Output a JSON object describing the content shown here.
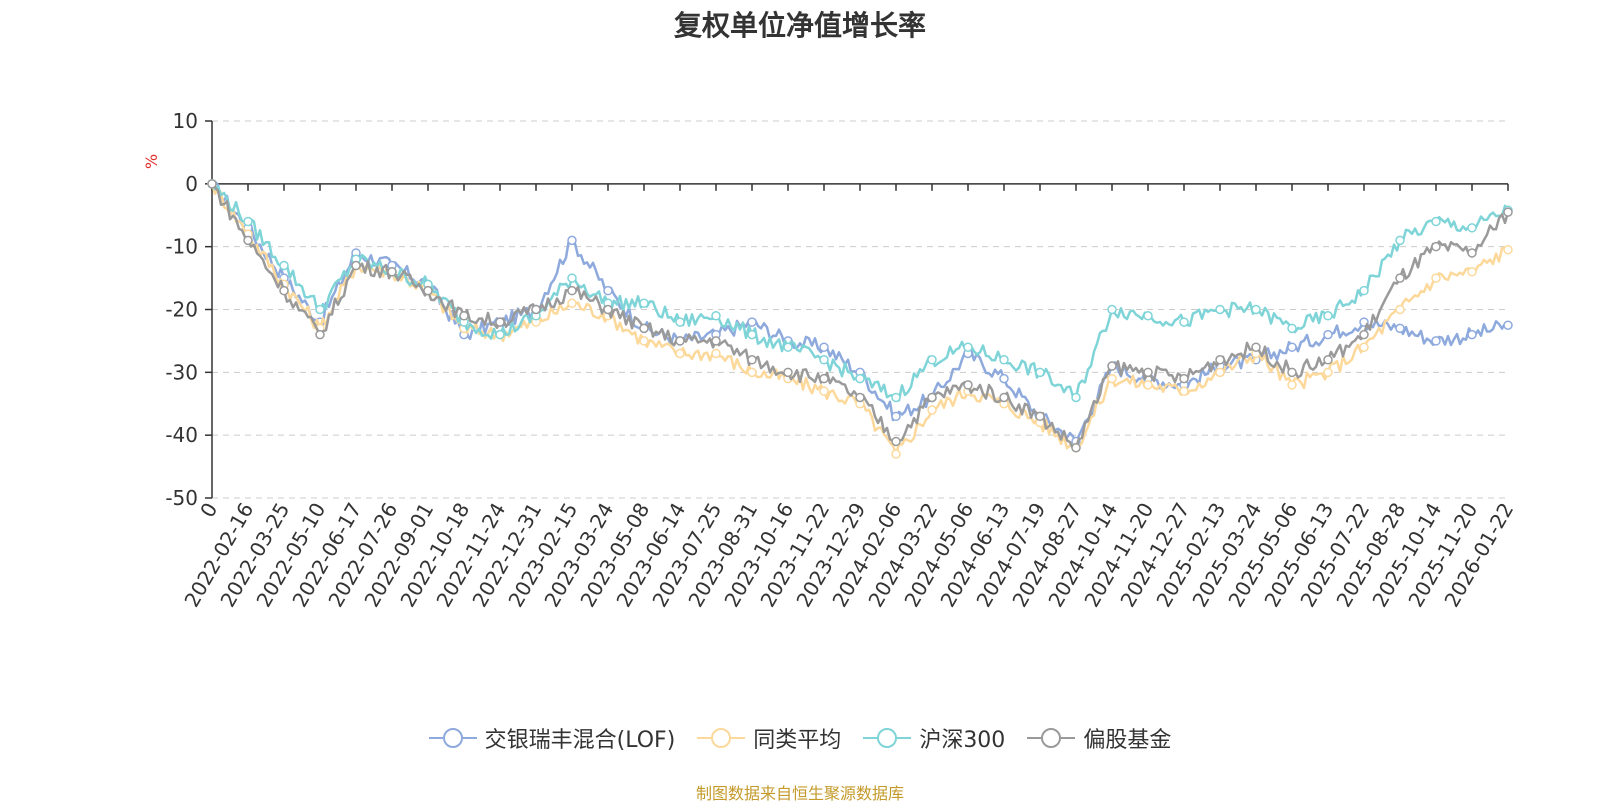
{
  "title": "复权单位净值增长率",
  "unit_label": "%",
  "source": "制图数据来自恒生聚源数据库",
  "colors": {
    "fund": "#8eaadd",
    "peer": "#fcd99b",
    "hs300": "#7fd4d8",
    "equity": "#9a9a9a",
    "axis": "#333333",
    "grid": "#cccccc"
  },
  "chart_data": {
    "type": "line",
    "title": "复权单位净值增长率",
    "ylabel": "%",
    "ylim": [
      -50,
      10
    ],
    "yticks": [
      10,
      0,
      -10,
      -20,
      -30,
      -40,
      -50
    ],
    "grid": "horizontal dashed",
    "legend_position": "bottom-center",
    "categories": [
      "0",
      "2022-02-16",
      "2022-03-25",
      "2022-05-10",
      "2022-06-17",
      "2022-07-26",
      "2022-09-01",
      "2022-10-18",
      "2022-11-24",
      "2022-12-31",
      "2023-02-15",
      "2023-03-24",
      "2023-05-08",
      "2023-06-14",
      "2023-07-25",
      "2023-08-31",
      "2023-10-16",
      "2023-11-22",
      "2023-12-29",
      "2024-02-06",
      "2024-03-22",
      "2024-05-06",
      "2024-06-13",
      "2024-07-19",
      "2024-08-27",
      "2024-10-14",
      "2024-11-20",
      "2024-12-27",
      "2025-02-13",
      "2025-03-24",
      "2025-05-06",
      "2025-06-13",
      "2025-07-22",
      "2025-08-28",
      "2025-10-14",
      "2025-11-20",
      "2026-01-22"
    ],
    "series": [
      {
        "name": "交银瑞丰混合(LOF)",
        "color": "#8eaadd",
        "values": [
          0,
          -7,
          -15,
          -22,
          -11,
          -13,
          -16,
          -24,
          -22,
          -20,
          -9,
          -17,
          -23,
          -25,
          -24,
          -22,
          -25,
          -26,
          -30,
          -37,
          -34,
          -27,
          -31,
          -37,
          -41,
          -29,
          -31,
          -32,
          -29,
          -28,
          -26,
          -24,
          -22,
          -23,
          -25,
          -24,
          -22.5
        ]
      },
      {
        "name": "同类平均",
        "color": "#fcd99b",
        "values": [
          0,
          -8,
          -16,
          -23,
          -13,
          -14,
          -17,
          -23,
          -24,
          -22,
          -19,
          -21,
          -25,
          -27,
          -27,
          -30,
          -31,
          -33,
          -35,
          -43,
          -36,
          -33,
          -35,
          -38,
          -42,
          -31,
          -32,
          -33,
          -30,
          -27,
          -32,
          -30,
          -26,
          -20,
          -15,
          -14,
          -10.5
        ]
      },
      {
        "name": "沪深300",
        "color": "#7fd4d8",
        "values": [
          0,
          -6,
          -13,
          -20,
          -12,
          -14,
          -16,
          -22,
          -24,
          -21,
          -15,
          -19,
          -19,
          -22,
          -21,
          -24,
          -26,
          -28,
          -31,
          -34,
          -28,
          -26,
          -28,
          -30,
          -34,
          -20,
          -21,
          -22,
          -20,
          -20,
          -23,
          -21,
          -17,
          -9,
          -6,
          -7,
          -4.2
        ]
      },
      {
        "name": "偏股基金",
        "color": "#9a9a9a",
        "values": [
          0,
          -9,
          -17,
          -24,
          -13,
          -14,
          -17,
          -21,
          -22,
          -20,
          -17,
          -20,
          -23,
          -25,
          -25,
          -28,
          -30,
          -31,
          -34,
          -41,
          -34,
          -32,
          -34,
          -37,
          -42,
          -29,
          -30,
          -31,
          -28,
          -26,
          -30,
          -28,
          -24,
          -15,
          -10,
          -11,
          -4.5
        ]
      }
    ]
  }
}
